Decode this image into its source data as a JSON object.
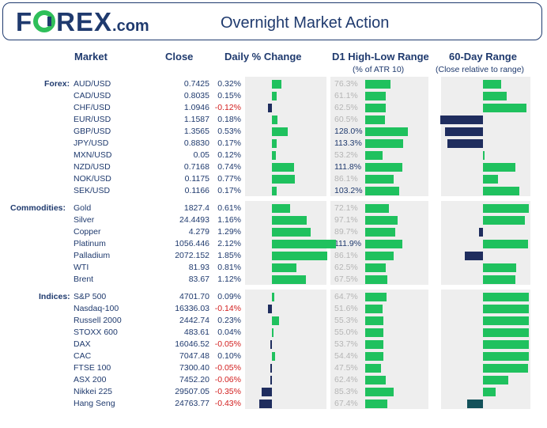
{
  "header": {
    "logo": {
      "pre": "F",
      "post": "REX",
      "com": ".com"
    },
    "title": "Overnight Market Action"
  },
  "columns": {
    "market": "Market",
    "close": "Close",
    "daily": "Daily % Change",
    "d1": "D1 High-Low Range",
    "d1_sub": "(% of ATR 10)",
    "r60": "60-Day Range",
    "r60_sub": "(Close relative to range)"
  },
  "colors": {
    "positive": "#1fc15e",
    "negative": "#1f2d5e",
    "text": "#1f3a6e",
    "negative_text": "#d21f1f"
  },
  "chart_data": {
    "type": "bar",
    "groups": [
      {
        "label": "Forex:",
        "rows": [
          {
            "name": "AUD/USD",
            "close": "0.7425",
            "daily": "0.32%",
            "daily_value": 0.32,
            "d1": "76.3%",
            "d1_value": 76.3,
            "range60_value": 0.4
          },
          {
            "name": "CAD/USD",
            "close": "0.8035",
            "daily": "0.15%",
            "daily_value": 0.15,
            "d1": "61.1%",
            "d1_value": 61.1,
            "range60_value": 0.52
          },
          {
            "name": "CHF/USD",
            "close": "1.0946",
            "daily": "-0.12%",
            "daily_value": -0.12,
            "d1": "62.5%",
            "d1_value": 62.5,
            "range60_value": 0.95
          },
          {
            "name": "EUR/USD",
            "close": "1.1587",
            "daily": "0.18%",
            "daily_value": 0.18,
            "d1": "60.5%",
            "d1_value": 60.5,
            "range60_value": -0.93
          },
          {
            "name": "GBP/USD",
            "close": "1.3565",
            "daily": "0.53%",
            "daily_value": 0.53,
            "d1": "128.0%",
            "d1_value": 128.0,
            "range60_value": -0.82
          },
          {
            "name": "JPY/USD",
            "close": "0.8830",
            "daily": "0.17%",
            "daily_value": 0.17,
            "d1": "113.3%",
            "d1_value": 113.3,
            "range60_value": -0.77
          },
          {
            "name": "MXN/USD",
            "close": "0.05",
            "daily": "0.12%",
            "daily_value": 0.12,
            "d1": "53.2%",
            "d1_value": 53.2,
            "range60_value": 0.02
          },
          {
            "name": "NZD/USD",
            "close": "0.7168",
            "daily": "0.74%",
            "daily_value": 0.74,
            "d1": "111.8%",
            "d1_value": 111.8,
            "range60_value": 0.7
          },
          {
            "name": "NOK/USD",
            "close": "0.1175",
            "daily": "0.77%",
            "daily_value": 0.77,
            "d1": "86.1%",
            "d1_value": 86.1,
            "range60_value": 0.32
          },
          {
            "name": "SEK/USD",
            "close": "0.1166",
            "daily": "0.17%",
            "daily_value": 0.17,
            "d1": "103.2%",
            "d1_value": 103.2,
            "range60_value": 0.8
          }
        ]
      },
      {
        "label": "Commodities:",
        "rows": [
          {
            "name": "Gold",
            "close": "1827.4",
            "daily": "0.61%",
            "daily_value": 0.61,
            "d1": "72.1%",
            "d1_value": 72.1,
            "range60_value": 1.0
          },
          {
            "name": "Silver",
            "close": "24.4493",
            "daily": "1.16%",
            "daily_value": 1.16,
            "d1": "97.1%",
            "d1_value": 97.1,
            "range60_value": 0.92
          },
          {
            "name": "Copper",
            "close": "4.279",
            "daily": "1.29%",
            "daily_value": 1.29,
            "d1": "89.7%",
            "d1_value": 89.7,
            "range60_value": -0.08
          },
          {
            "name": "Platinum",
            "close": "1056.446",
            "daily": "2.12%",
            "daily_value": 2.12,
            "d1": "111.9%",
            "d1_value": 111.9,
            "range60_value": 0.98
          },
          {
            "name": "Palladium",
            "close": "2072.152",
            "daily": "1.85%",
            "daily_value": 1.85,
            "d1": "86.1%",
            "d1_value": 86.1,
            "range60_value": -0.4
          },
          {
            "name": "WTI",
            "close": "81.93",
            "daily": "0.81%",
            "daily_value": 0.81,
            "d1": "62.5%",
            "d1_value": 62.5,
            "range60_value": 0.72
          },
          {
            "name": "Brent",
            "close": "83.67",
            "daily": "1.12%",
            "daily_value": 1.12,
            "d1": "67.5%",
            "d1_value": 67.5,
            "range60_value": 0.7
          }
        ]
      },
      {
        "label": "Indices:",
        "rows": [
          {
            "name": "S&P 500",
            "close": "4701.70",
            "daily": "0.09%",
            "daily_value": 0.09,
            "d1": "64.7%",
            "d1_value": 64.7,
            "range60_value": 1.0
          },
          {
            "name": "Nasdaq-100",
            "close": "16336.03",
            "daily": "-0.14%",
            "daily_value": -0.14,
            "d1": "51.6%",
            "d1_value": 51.6,
            "range60_value": 1.0
          },
          {
            "name": "Russell 2000",
            "close": "2442.74",
            "daily": "0.23%",
            "daily_value": 0.23,
            "d1": "55.3%",
            "d1_value": 55.3,
            "range60_value": 1.0
          },
          {
            "name": "STOXX 600",
            "close": "483.61",
            "daily": "0.04%",
            "daily_value": 0.04,
            "d1": "55.0%",
            "d1_value": 55.0,
            "range60_value": 1.0
          },
          {
            "name": "DAX",
            "close": "16046.52",
            "daily": "-0.05%",
            "daily_value": -0.05,
            "d1": "53.7%",
            "d1_value": 53.7,
            "range60_value": 1.0
          },
          {
            "name": "CAC",
            "close": "7047.48",
            "daily": "0.10%",
            "daily_value": 0.1,
            "d1": "54.4%",
            "d1_value": 54.4,
            "range60_value": 1.0
          },
          {
            "name": "FTSE 100",
            "close": "7300.40",
            "daily": "-0.05%",
            "daily_value": -0.05,
            "d1": "47.5%",
            "d1_value": 47.5,
            "range60_value": 0.98
          },
          {
            "name": "ASX 200",
            "close": "7452.20",
            "daily": "-0.06%",
            "daily_value": -0.06,
            "d1": "62.4%",
            "d1_value": 62.4,
            "range60_value": 0.56
          },
          {
            "name": "Nikkei 225",
            "close": "29507.05",
            "daily": "-0.35%",
            "daily_value": -0.35,
            "d1": "85.3%",
            "d1_value": 85.3,
            "range60_value": 0.28
          },
          {
            "name": "Hang Seng",
            "close": "24763.77",
            "daily": "-0.43%",
            "daily_value": -0.43,
            "d1": "67.4%",
            "d1_value": 67.4,
            "range60_value": -0.35
          }
        ]
      }
    ]
  }
}
